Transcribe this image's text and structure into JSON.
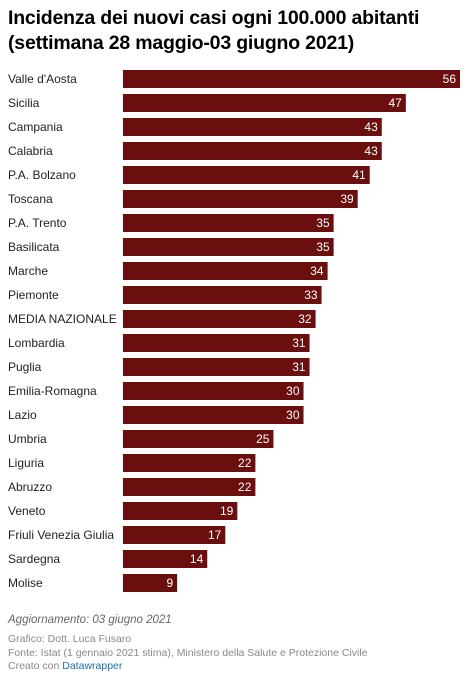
{
  "header": {
    "title_line1": "Incidenza dei nuovi casi ogni 100.000 abitanti",
    "title_line2": "(settimana 28 maggio-03 giugno 2021)"
  },
  "chart_data": {
    "type": "bar",
    "orientation": "horizontal",
    "title": "Incidenza dei nuovi casi ogni 100.000 abitanti (settimana 28 maggio-03 giugno 2021)",
    "categories": [
      "Valle d'Aosta",
      "Sicilia",
      "Campania",
      "Calabria",
      "P.A. Bolzano",
      "Toscana",
      "P.A. Trento",
      "Basilicata",
      "Marche",
      "Piemonte",
      "MEDIA NAZIONALE",
      "Lombardia",
      "Puglia",
      "Emilia-Romagna",
      "Lazio",
      "Umbria",
      "Liguria",
      "Abruzzo",
      "Veneto",
      "Friuli Venezia Giulia",
      "Sardegna",
      "Molise"
    ],
    "values": [
      56,
      47,
      43,
      43,
      41,
      39,
      35,
      35,
      34,
      33,
      32,
      31,
      31,
      30,
      30,
      25,
      22,
      22,
      19,
      17,
      14,
      9
    ],
    "xlim": [
      0,
      56
    ],
    "bar_color": "#6b0e0e",
    "value_label_color": "#ffffff",
    "grid": false
  },
  "footer": {
    "update": "Aggiornamento: 03 giugno 2021",
    "credit": "Grafico: Dott. Luca Fusaro",
    "source_prefix": "Fonte: Istat (1 gennaio 2021 stima), ",
    "source_link": "Ministero della Salute e Protezione Civile",
    "created_prefix": "Creato con ",
    "created_link": "Datawrapper"
  }
}
